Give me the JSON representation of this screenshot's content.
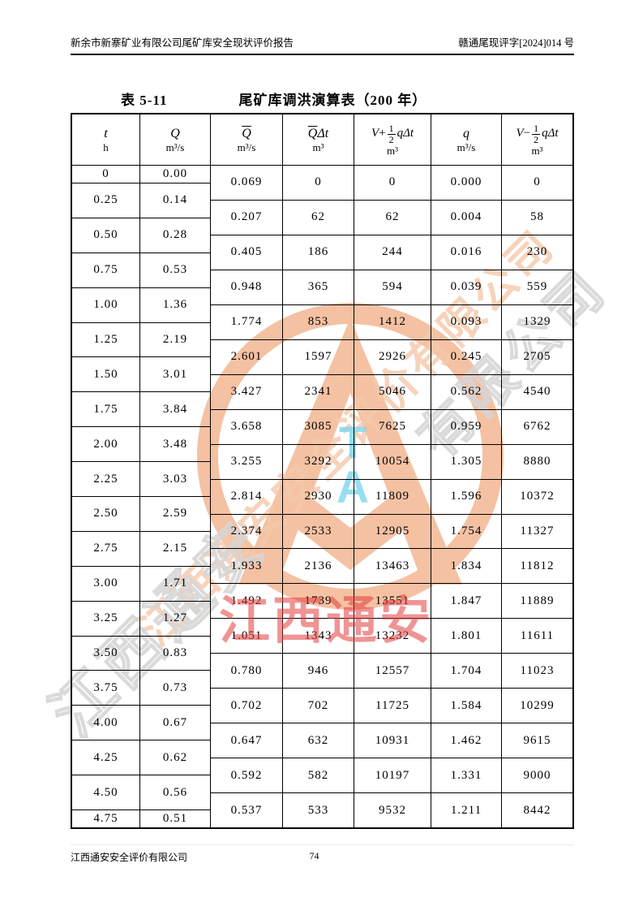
{
  "page": {
    "header_left": "新余市新寨矿业有限公司尾矿库安全现状评价报告",
    "header_right": "赣通尾现评字[2024]014 号",
    "footer_company": "江西通安安全评价有限公司",
    "page_number": "74"
  },
  "title": {
    "label": "表 5-11",
    "text": "尾矿库调洪演算表（200 年）"
  },
  "table": {
    "headers": {
      "c1": {
        "sym": "t",
        "unit": "h"
      },
      "c2": {
        "sym": "Q",
        "unit": "m³/s"
      },
      "c3": {
        "bar": "Q",
        "rest": "",
        "unit": "m³/s"
      },
      "c4": {
        "bar": "Q",
        "rest": "Δt",
        "unit": "m³"
      },
      "c5": {
        "prefix": "V",
        "op": "+",
        "num": "1",
        "den": "2",
        "suffix": "qΔt",
        "unit": "m³"
      },
      "c6": {
        "sym": "q",
        "unit": "m³/s"
      },
      "c7": {
        "prefix": "V",
        "op": "−",
        "num": "1",
        "den": "2",
        "suffix": "qΔt",
        "unit": "m³"
      }
    },
    "left_rows": [
      [
        "0",
        "0.00"
      ],
      [
        "0.25",
        "0.14"
      ],
      [
        "0.50",
        "0.28"
      ],
      [
        "0.75",
        "0.53"
      ],
      [
        "1.00",
        "1.36"
      ],
      [
        "1.25",
        "2.19"
      ],
      [
        "1.50",
        "3.01"
      ],
      [
        "1.75",
        "3.84"
      ],
      [
        "2.00",
        "3.48"
      ],
      [
        "2.25",
        "3.03"
      ],
      [
        "2.50",
        "2.59"
      ],
      [
        "2.75",
        "2.15"
      ],
      [
        "3.00",
        "1.71"
      ],
      [
        "3.25",
        "1.27"
      ],
      [
        "3.50",
        "0.83"
      ],
      [
        "3.75",
        "0.73"
      ],
      [
        "4.00",
        "0.67"
      ],
      [
        "4.25",
        "0.62"
      ],
      [
        "4.50",
        "0.56"
      ],
      [
        "4.75",
        "0.51"
      ]
    ],
    "right_rows": [
      [
        "0.069",
        "0",
        "0",
        "0.000",
        "0"
      ],
      [
        "0.207",
        "62",
        "62",
        "0.004",
        "58"
      ],
      [
        "0.405",
        "186",
        "244",
        "0.016",
        "230"
      ],
      [
        "0.948",
        "365",
        "594",
        "0.039",
        "559"
      ],
      [
        "1.774",
        "853",
        "1412",
        "0.093",
        "1329"
      ],
      [
        "2.601",
        "1597",
        "2926",
        "0.245",
        "2705"
      ],
      [
        "3.427",
        "2341",
        "5046",
        "0.562",
        "4540"
      ],
      [
        "3.658",
        "3085",
        "7625",
        "0.959",
        "6762"
      ],
      [
        "3.255",
        "3292",
        "10054",
        "1.305",
        "8880"
      ],
      [
        "2.814",
        "2930",
        "11809",
        "1.596",
        "10372"
      ],
      [
        "2.374",
        "2533",
        "12905",
        "1.754",
        "11327"
      ],
      [
        "1.933",
        "2136",
        "13463",
        "1.834",
        "11812"
      ],
      [
        "1.492",
        "1739",
        "13551",
        "1.847",
        "11889"
      ],
      [
        "1.051",
        "1343",
        "13232",
        "1.801",
        "11611"
      ],
      [
        "0.780",
        "946",
        "12557",
        "1.704",
        "11023"
      ],
      [
        "0.702",
        "702",
        "11725",
        "1.584",
        "10299"
      ],
      [
        "0.647",
        "632",
        "10931",
        "1.462",
        "9615"
      ],
      [
        "0.592",
        "582",
        "10197",
        "1.331",
        "9000"
      ],
      [
        "0.537",
        "533",
        "9532",
        "1.211",
        "8442"
      ]
    ]
  },
  "watermark": {
    "red_text": "江西通安",
    "diag_orange_text": "江西通安安全评价有限公司",
    "diag_gray_lower": "江西通安",
    "diag_gray_upper": "有限公司",
    "logo_letter_top": "T",
    "logo_letter_bottom": "A",
    "colors": {
      "ring": "#f2a87d",
      "red": "#e23d3d",
      "cyan": "#7ed7ee",
      "gray": "#d6d6d6",
      "peach": "#f6c9ab"
    }
  }
}
